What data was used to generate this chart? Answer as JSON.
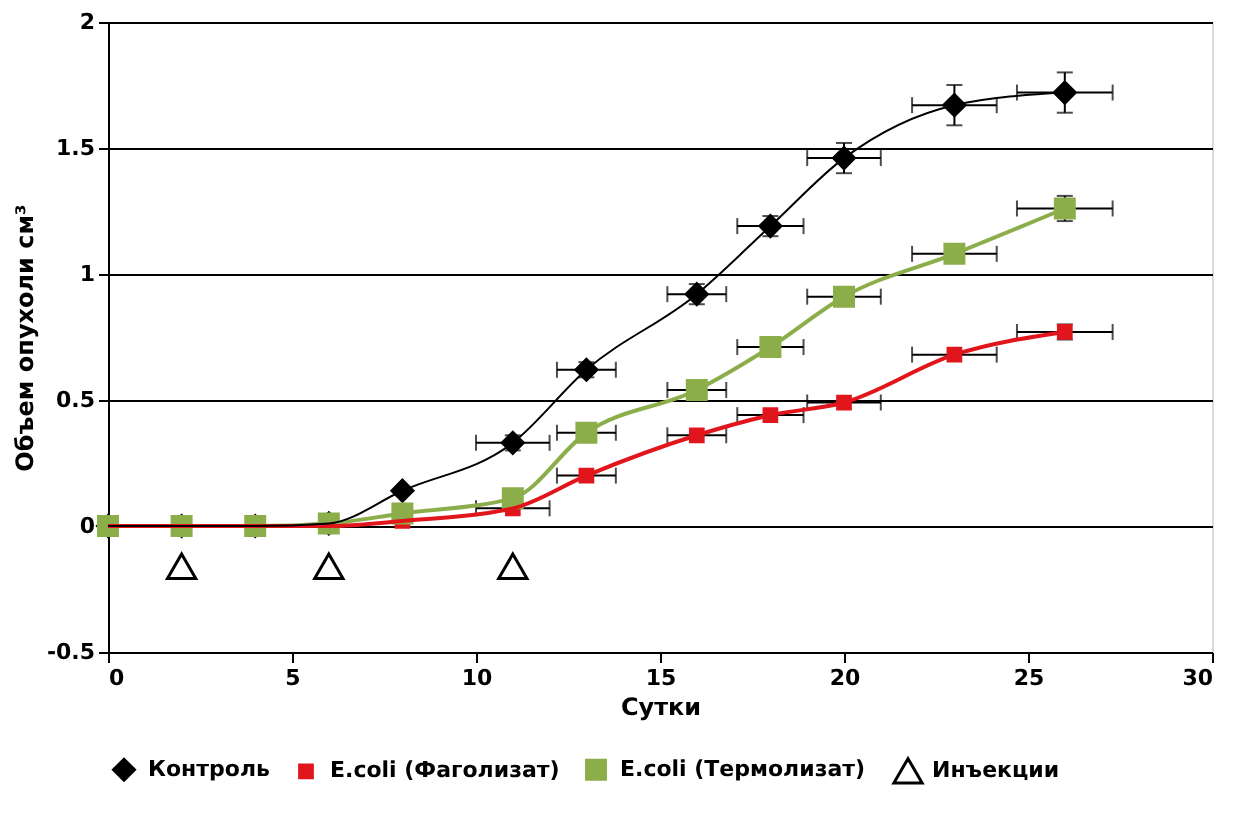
{
  "chart_data": {
    "type": "line",
    "xlabel": "Сутки",
    "ylabel": "Объем опухоли  см³",
    "xlim": [
      0,
      30
    ],
    "xticks": [
      0,
      5,
      10,
      15,
      20,
      25,
      30
    ],
    "ylim": [
      -0.5,
      2
    ],
    "yticks": [
      -0.5,
      0,
      0.5,
      1,
      1.5,
      2
    ],
    "grid": "y",
    "legend": "bottom",
    "series": [
      {
        "name": "Контроль",
        "marker": "diamond",
        "color": "#000000",
        "x": [
          0,
          2,
          4,
          6,
          8,
          11,
          13,
          16,
          18,
          20,
          23,
          26
        ],
        "values": [
          0,
          0,
          0,
          0.01,
          0.14,
          0.33,
          0.62,
          0.92,
          1.19,
          1.46,
          1.67,
          1.72
        ],
        "errors": [
          null,
          null,
          null,
          null,
          null,
          0.03,
          0.03,
          0.04,
          0.04,
          0.06,
          0.08,
          0.08
        ],
        "xerrors": [
          null,
          null,
          null,
          null,
          null,
          1,
          0.8,
          0.8,
          0.9,
          1,
          1.15,
          1.3
        ]
      },
      {
        "name": "E.coli (Фаголизат)",
        "marker": "square",
        "color": "#e0161c",
        "x": [
          0,
          2,
          4,
          6,
          8,
          11,
          13,
          16,
          18,
          20,
          23,
          26
        ],
        "values": [
          0,
          0,
          0,
          0,
          0.02,
          0.07,
          0.2,
          0.36,
          0.44,
          0.49,
          0.68,
          0.77
        ],
        "errors": [
          null,
          null,
          null,
          null,
          null,
          null,
          null,
          null,
          null,
          null,
          null,
          0.03
        ],
        "xerrors": [
          null,
          null,
          null,
          null,
          null,
          1,
          0.8,
          0.8,
          0.9,
          1,
          1.15,
          1.3
        ]
      },
      {
        "name": "E.coli (Термолизат)",
        "marker": "square",
        "color": "#8cae4a",
        "x": [
          0,
          2,
          4,
          6,
          8,
          11,
          13,
          16,
          18,
          20,
          23,
          26
        ],
        "values": [
          0,
          0,
          0,
          0.01,
          0.05,
          0.11,
          0.37,
          0.54,
          0.71,
          0.91,
          1.08,
          1.26
        ],
        "errors": [
          null,
          null,
          null,
          null,
          null,
          null,
          null,
          null,
          null,
          null,
          null,
          0.05
        ],
        "xerrors": [
          null,
          null,
          null,
          null,
          null,
          null,
          0.8,
          0.8,
          0.9,
          1,
          1.15,
          1.3
        ]
      },
      {
        "name": "Инъекции",
        "type": "scatter",
        "marker": "triangle",
        "color": "#000000",
        "x": [
          2,
          6,
          11
        ],
        "values": [
          -0.16,
          -0.16,
          -0.16
        ]
      }
    ]
  }
}
